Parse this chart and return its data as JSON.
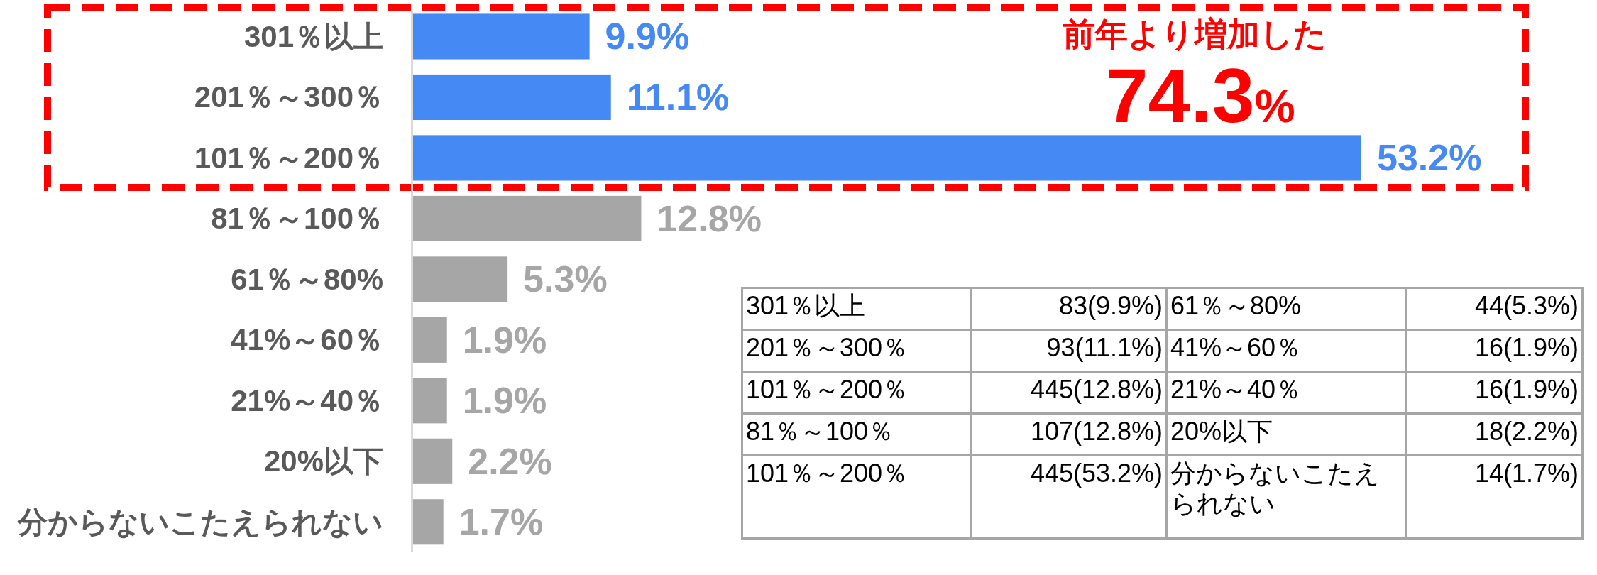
{
  "chart_data": [
    {
      "type": "bar",
      "orientation": "horizontal",
      "categories": [
        "301％以上",
        "201％～300％",
        "101％～200％",
        "81％～100％",
        "61％～80%",
        "41%～60％",
        "21%～40％",
        "20%以下",
        "分からないこたえられない"
      ],
      "values": [
        9.9,
        11.1,
        53.2,
        12.8,
        5.3,
        1.9,
        1.9,
        2.2,
        1.7
      ],
      "colors": [
        "#4589f5",
        "#4589f5",
        "#4589f5",
        "#a6a6a6",
        "#a6a6a6",
        "#a6a6a6",
        "#a6a6a6",
        "#a6a6a6",
        "#a6a6a6"
      ],
      "value_labels": [
        "9.9%",
        "11.1%",
        "53.2%",
        "12.8%",
        "5.3%",
        "1.9%",
        "1.9%",
        "2.2%",
        "1.7%"
      ],
      "annotations": [
        "前年より増加した",
        "74.3%"
      ]
    },
    {
      "type": "other",
      "annotations": [
        "301％以上",
        "83(9.9%)",
        "61％～80%",
        "44(5.3%)",
        "201％～300％",
        "93(11.1%)",
        "41%～60％",
        "16(1.9%)",
        "101％～200％",
        "445(12.8%)",
        "21%～40％",
        "16(1.9%)",
        "81％～100％",
        "107(12.8%)",
        "20%以下",
        "18(2.2%)",
        "101％～200％",
        "445(53.2%)",
        "分からないこたえられない",
        "14(1.7%)"
      ]
    }
  ]
}
